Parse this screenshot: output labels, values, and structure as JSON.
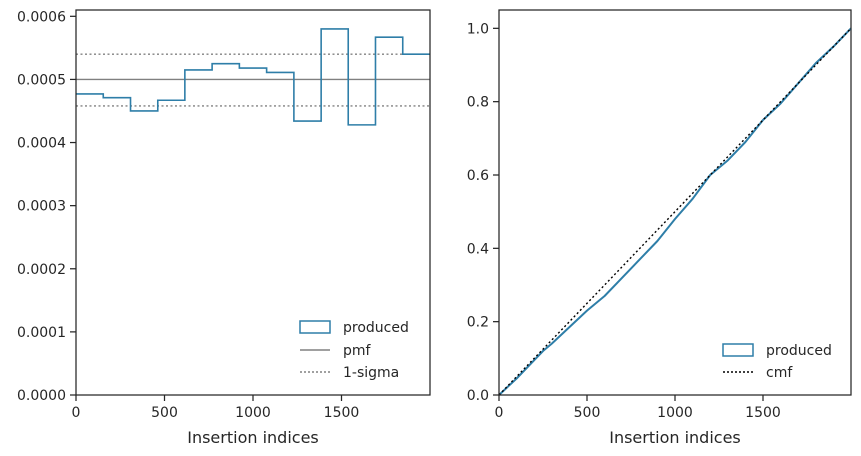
{
  "chart_data": [
    {
      "type": "step",
      "xlabel": "Insertion indices",
      "ylabel": "",
      "title": "",
      "xlim": [
        0,
        2000
      ],
      "ylim": [
        0,
        0.00061
      ],
      "xticks": [
        0,
        500,
        1000,
        1500
      ],
      "xtick_labels": [
        "0",
        "500",
        "1000",
        "1500"
      ],
      "yticks": [
        0,
        0.0001,
        0.0002,
        0.0003,
        0.0004,
        0.0005,
        0.0006
      ],
      "ytick_labels": [
        "0.0000",
        "0.0001",
        "0.0002",
        "0.0003",
        "0.0004",
        "0.0005",
        "0.0006"
      ],
      "legend_position": "lower-right",
      "colors": {
        "produced": "#2e7ea8",
        "reference": "#808080"
      },
      "series": [
        {
          "name": "produced",
          "style": "step",
          "bin_edges": [
            0,
            154,
            308,
            462,
            615,
            769,
            923,
            1077,
            1231,
            1385,
            1538,
            1692,
            1846,
            2000
          ],
          "values": [
            0.000477,
            0.000471,
            0.00045,
            0.000467,
            0.000515,
            0.000525,
            0.000518,
            0.000511,
            0.000434,
            0.00058,
            0.000428,
            0.000567,
            0.00054
          ]
        },
        {
          "name": "pmf",
          "style": "solid",
          "x": [
            0,
            2000
          ],
          "y": [
            0.0005,
            0.0005
          ]
        },
        {
          "name": "1-sigma",
          "style": "dotted",
          "x": [
            0,
            2000
          ],
          "y": [
            0.00054,
            0.00054
          ]
        },
        {
          "name": "1-sigma",
          "style": "dotted",
          "x": [
            0,
            2000
          ],
          "y": [
            0.000458,
            0.000458
          ]
        }
      ],
      "legend": [
        "produced",
        "pmf",
        "1-sigma"
      ]
    },
    {
      "type": "line",
      "xlabel": "Insertion indices",
      "ylabel": "",
      "title": "",
      "xlim": [
        0,
        2000
      ],
      "ylim": [
        0,
        1.05
      ],
      "xticks": [
        0,
        500,
        1000,
        1500
      ],
      "xtick_labels": [
        "0",
        "500",
        "1000",
        "1500"
      ],
      "yticks": [
        0,
        0.2,
        0.4,
        0.6,
        0.8,
        1.0
      ],
      "ytick_labels": [
        "0.0",
        "0.2",
        "0.4",
        "0.6",
        "0.8",
        "1.0"
      ],
      "legend_position": "lower-right",
      "colors": {
        "produced": "#2e7ea8",
        "cmf": "#000000"
      },
      "series": [
        {
          "name": "produced",
          "style": "solid",
          "x": [
            0,
            100,
            200,
            250,
            300,
            400,
            500,
            600,
            700,
            800,
            900,
            1000,
            1100,
            1200,
            1300,
            1400,
            1500,
            1600,
            1700,
            1800,
            1900,
            2000
          ],
          "y": [
            0,
            0.045,
            0.095,
            0.12,
            0.14,
            0.185,
            0.23,
            0.27,
            0.32,
            0.37,
            0.42,
            0.48,
            0.535,
            0.6,
            0.64,
            0.69,
            0.75,
            0.795,
            0.85,
            0.905,
            0.95,
            1.0
          ]
        },
        {
          "name": "cmf",
          "style": "dotted",
          "x": [
            0,
            2000
          ],
          "y": [
            0,
            1.0
          ]
        }
      ],
      "legend": [
        "produced",
        "cmf"
      ]
    }
  ]
}
